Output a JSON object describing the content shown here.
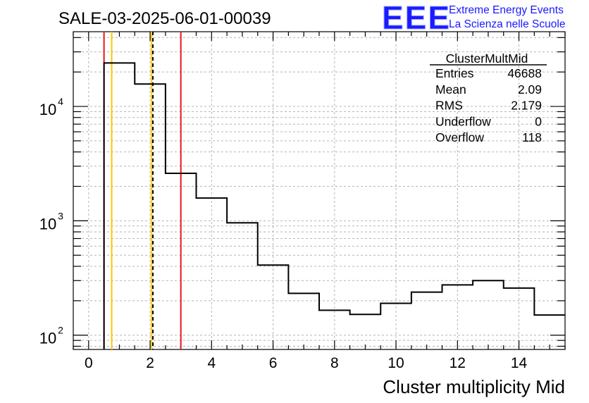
{
  "header": {
    "run_title": "SALE-03-2025-06-01-00039",
    "logo_text": "EEE",
    "logo_line1": "Extreme Energy Events",
    "logo_line2": "La Scienza nelle Scuole"
  },
  "stats_box": {
    "title": "ClusterMultMid",
    "rows": [
      {
        "label": "Entries",
        "value": "46688"
      },
      {
        "label": "Mean",
        "value": "2.09"
      },
      {
        "label": "RMS",
        "value": "2.179"
      },
      {
        "label": "Underflow",
        "value": "0"
      },
      {
        "label": "Overflow",
        "value": "118"
      }
    ]
  },
  "colors": {
    "histogram": "#000000",
    "red_line": "#e8161d",
    "orange_line": "#ffc600",
    "mean_dash": "#000000",
    "grid": "#b4b4b4",
    "logo_blue": "#1a1aff"
  },
  "chart_data": {
    "type": "histogram",
    "x_axis_label": "Cluster multiplicity Mid",
    "y_scale": "log",
    "grid": true,
    "xlim": [
      -0.5,
      15.5
    ],
    "ylim": [
      75,
      45000
    ],
    "x_ticks": [
      "0",
      "2",
      "4",
      "6",
      "8",
      "10",
      "12",
      "14"
    ],
    "y_ticks": [
      {
        "value": 100,
        "label": "10",
        "exp": "2"
      },
      {
        "value": 1000,
        "label": "10",
        "exp": "3"
      },
      {
        "value": 10000,
        "label": "10",
        "exp": "4"
      }
    ],
    "bin_edges": [
      -0.5,
      0.5,
      1.5,
      2.5,
      3.5,
      4.5,
      5.5,
      6.5,
      7.5,
      8.5,
      9.5,
      10.5,
      11.5,
      12.5,
      13.5,
      14.5,
      15.5
    ],
    "counts": [
      0,
      24000,
      15700,
      2600,
      1580,
      960,
      410,
      232,
      165,
      152,
      190,
      238,
      275,
      300,
      258,
      150
    ],
    "vertical_lines": [
      {
        "x": 0.5,
        "color": "red",
        "style": "solid"
      },
      {
        "x": 0.75,
        "color": "orange",
        "style": "solid"
      },
      {
        "x": 2.05,
        "color": "orange",
        "style": "solid"
      },
      {
        "x": 2.09,
        "color": "black",
        "style": "dashed"
      },
      {
        "x": 3.0,
        "color": "red",
        "style": "solid"
      }
    ]
  }
}
